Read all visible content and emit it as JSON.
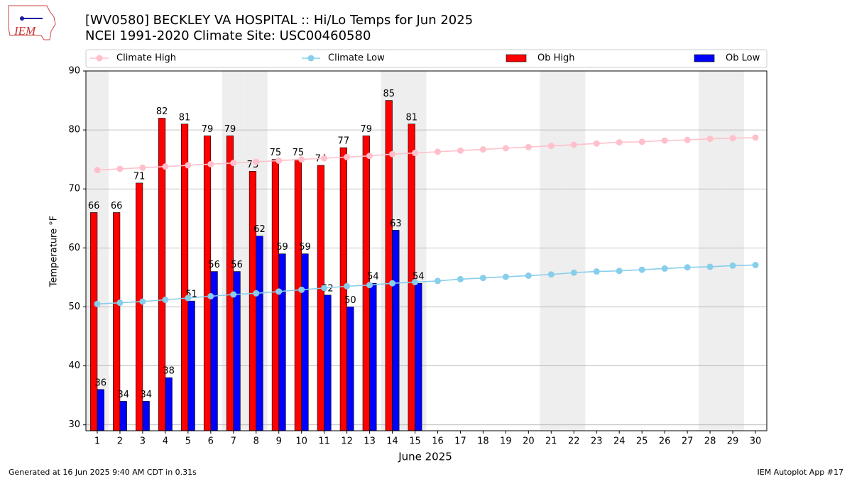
{
  "chart_data": {
    "type": "bar",
    "title": "[WV0580] BECKLEY VA HOSPITAL :: Hi/Lo Temps for Jun 2025",
    "subtitle": "NCEI 1991-2020 Climate Site: USC00460580",
    "y_label": "Temperature $^\\circ$F",
    "x_label": "June 2025",
    "categories": [
      "1",
      "2",
      "3",
      "4",
      "5",
      "6",
      "7",
      "8",
      "9",
      "10",
      "11",
      "12",
      "13",
      "14",
      "15",
      "16",
      "17",
      "18",
      "19",
      "20",
      "21",
      "22",
      "23",
      "24",
      "25",
      "26",
      "27",
      "28",
      "29",
      "30"
    ],
    "shaded": [
      1,
      7,
      8,
      14,
      15,
      21,
      22,
      28,
      29
    ],
    "series": [
      {
        "name": "Climate High",
        "type": "line",
        "color": "#ffc0cb",
        "values": [
          73.2,
          73.4,
          73.6,
          73.8,
          74.0,
          74.2,
          74.4,
          74.6,
          74.8,
          75.0,
          75.2,
          75.4,
          75.6,
          75.9,
          76.1,
          76.3,
          76.5,
          76.7,
          76.9,
          77.1,
          77.3,
          77.5,
          77.7,
          77.9,
          78.0,
          78.2,
          78.3,
          78.5,
          78.6,
          78.7
        ]
      },
      {
        "name": "Climate Low",
        "type": "line",
        "color": "#87ceeb",
        "values": [
          50.5,
          50.7,
          50.9,
          51.2,
          51.5,
          51.8,
          52.1,
          52.3,
          52.6,
          52.9,
          53.2,
          53.5,
          53.7,
          54.0,
          54.2,
          54.4,
          54.7,
          54.9,
          55.1,
          55.3,
          55.5,
          55.8,
          56.0,
          56.1,
          56.3,
          56.5,
          56.7,
          56.8,
          57.0,
          57.1
        ]
      },
      {
        "name": "Ob High",
        "type": "bar",
        "color": "#ff0000",
        "values": [
          66,
          66,
          71,
          82,
          81,
          79,
          79,
          73,
          75,
          75,
          74,
          77,
          79,
          85,
          81,
          null,
          null,
          null,
          null,
          null,
          null,
          null,
          null,
          null,
          null,
          null,
          null,
          null,
          null,
          null
        ]
      },
      {
        "name": "Ob Low",
        "type": "bar",
        "color": "#0000ff",
        "values": [
          36,
          34,
          34,
          38,
          51,
          56,
          56,
          62,
          59,
          59,
          52,
          50,
          54,
          63,
          54,
          null,
          null,
          null,
          null,
          null,
          null,
          null,
          null,
          null,
          null,
          null,
          null,
          null,
          null,
          null
        ]
      }
    ],
    "ylim": [
      29,
      90
    ],
    "yticks": [
      30,
      40,
      50,
      60,
      70,
      80,
      90
    ],
    "grid": true
  },
  "logo": "IEM",
  "footer_left": "Generated at 16 Jun 2025 9:40 AM CDT in 0.31s",
  "footer_right": "IEM Autoplot App #17"
}
